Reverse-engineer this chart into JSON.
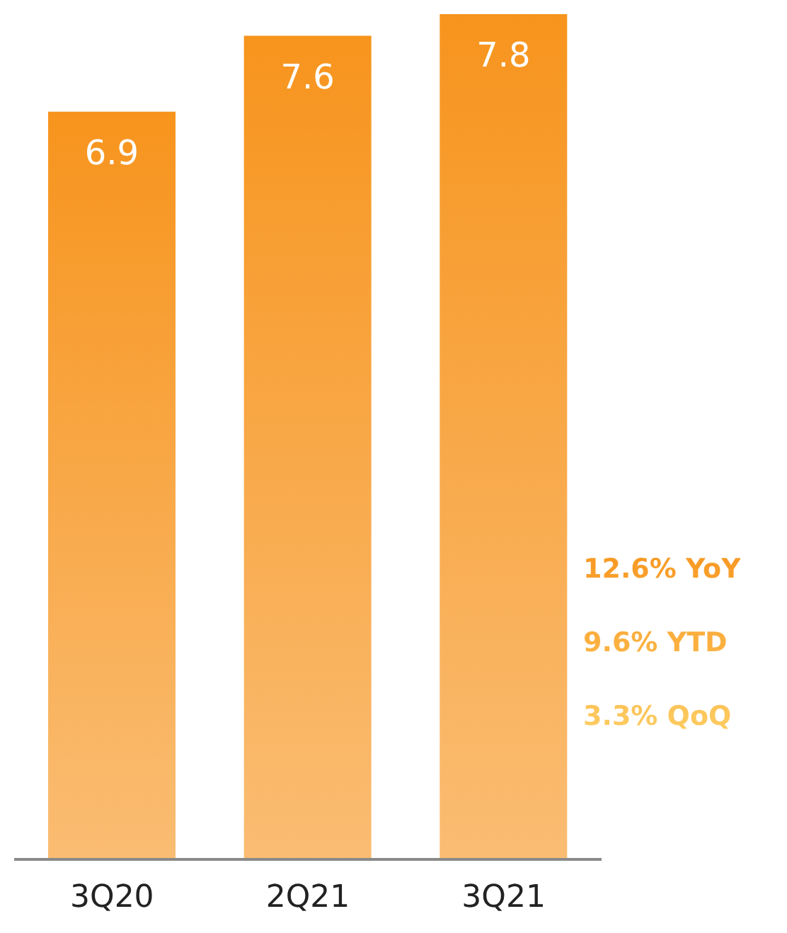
{
  "chart_data": {
    "type": "bar",
    "categories": [
      "3Q20",
      "2Q21",
      "3Q21"
    ],
    "values": [
      6.9,
      7.6,
      7.8
    ],
    "color": "#f7941d",
    "data_labels": true,
    "annotations": [
      "12.6% YoY",
      "9.6% YTD",
      "3.3% QoQ"
    ]
  }
}
